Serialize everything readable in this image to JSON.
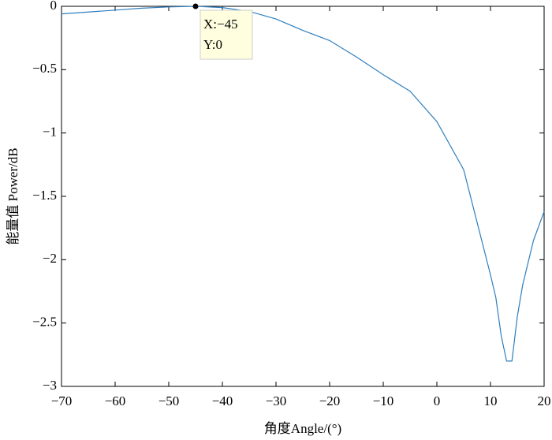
{
  "chart_data": {
    "type": "line",
    "xlabel": "角度Angle/(°)",
    "ylabel": "能量值 Power/dB",
    "x": [
      -70,
      -65,
      -60,
      -55,
      -50,
      -45,
      -40,
      -35,
      -30,
      -25,
      -20,
      -15,
      -10,
      -5,
      0,
      5,
      10,
      11,
      12,
      13,
      14,
      15,
      16,
      18,
      20
    ],
    "series": [
      {
        "color": "#2f7fbf",
        "values": [
          -0.06,
          -0.045,
          -0.03,
          -0.015,
          -0.005,
          0,
          -0.01,
          -0.04,
          -0.1,
          -0.19,
          -0.27,
          -0.4,
          -0.54,
          -0.67,
          -0.91,
          -1.29,
          -2.12,
          -2.3,
          -2.6,
          -2.8,
          -2.8,
          -2.45,
          -2.2,
          -1.85,
          -1.62
        ]
      }
    ],
    "xlim": [
      -70,
      20
    ],
    "ylim": [
      -3,
      0
    ],
    "xticks": [
      {
        "value": -70,
        "label": "−70"
      },
      {
        "value": -60,
        "label": "−60"
      },
      {
        "value": -50,
        "label": "−50"
      },
      {
        "value": -40,
        "label": "−40"
      },
      {
        "value": -30,
        "label": "−30"
      },
      {
        "value": -20,
        "label": "−20"
      },
      {
        "value": -10,
        "label": "−10"
      },
      0,
      10,
      20
    ],
    "yticks": [
      0,
      {
        "value": -0.5,
        "label": "−0.5"
      },
      {
        "value": -1,
        "label": "−1"
      },
      {
        "value": -1.5,
        "label": "−1.5"
      },
      {
        "value": -2,
        "label": "−2"
      },
      {
        "value": -2.5,
        "label": "−2.5"
      },
      {
        "value": -3,
        "label": "−3"
      }
    ],
    "datatip": {
      "x": -45,
      "y": 0,
      "x_label": "X:−45",
      "y_label": "Y:0"
    }
  }
}
